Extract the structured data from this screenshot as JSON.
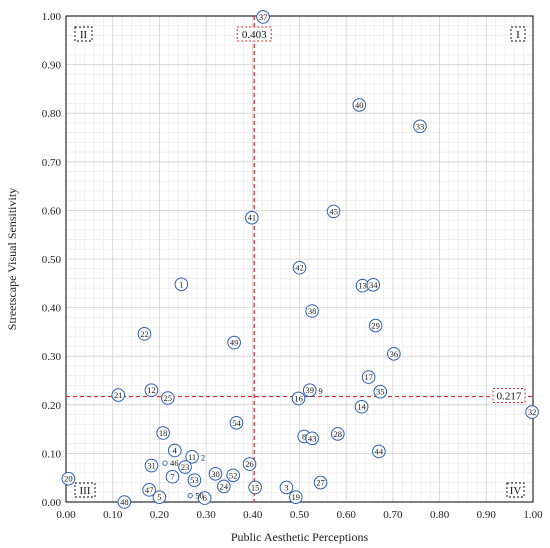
{
  "chart_data": {
    "type": "scatter",
    "xlabel": "Public Aesthetic Perceptions",
    "ylabel": "Streetscape Visual Sensitivity",
    "xlim": [
      0,
      1
    ],
    "ylim": [
      0,
      1
    ],
    "x_ticks": [
      "0.00",
      "0.10",
      "0.20",
      "0.30",
      "0.40",
      "0.50",
      "0.60",
      "0.70",
      "0.80",
      "0.90",
      "1.00"
    ],
    "y_ticks": [
      "0.00",
      "0.10",
      "0.20",
      "0.30",
      "0.40",
      "0.50",
      "0.60",
      "0.70",
      "0.80",
      "0.90",
      "1.00"
    ],
    "grid": true,
    "threshold_x": {
      "value": 0.403,
      "label": "0.403"
    },
    "threshold_y": {
      "value": 0.217,
      "label": "0.217"
    },
    "quadrants": [
      {
        "label": "I",
        "position": "top-right"
      },
      {
        "label": "II",
        "position": "top-left"
      },
      {
        "label": "III",
        "position": "bottom-left"
      },
      {
        "label": "IV",
        "position": "bottom-right"
      }
    ],
    "points": [
      {
        "id": "1",
        "x": 0.247,
        "y": 0.448
      },
      {
        "id": "2",
        "x": 0.278,
        "y": 0.092,
        "outside": true
      },
      {
        "id": "3",
        "x": 0.472,
        "y": 0.03
      },
      {
        "id": "4",
        "x": 0.233,
        "y": 0.106
      },
      {
        "id": "5",
        "x": 0.2,
        "y": 0.01
      },
      {
        "id": "6",
        "x": 0.297,
        "y": 0.008
      },
      {
        "id": "7",
        "x": 0.228,
        "y": 0.052
      },
      {
        "id": "8",
        "x": 0.51,
        "y": 0.135
      },
      {
        "id": "9",
        "x": 0.53,
        "y": 0.228,
        "outside": true
      },
      {
        "id": "11",
        "x": 0.27,
        "y": 0.093
      },
      {
        "id": "12",
        "x": 0.183,
        "y": 0.23
      },
      {
        "id": "13",
        "x": 0.635,
        "y": 0.445
      },
      {
        "id": "14",
        "x": 0.633,
        "y": 0.196
      },
      {
        "id": "15",
        "x": 0.405,
        "y": 0.03
      },
      {
        "id": "16",
        "x": 0.498,
        "y": 0.213
      },
      {
        "id": "17",
        "x": 0.648,
        "y": 0.257
      },
      {
        "id": "18",
        "x": 0.208,
        "y": 0.142
      },
      {
        "id": "19",
        "x": 0.492,
        "y": 0.01
      },
      {
        "id": "20",
        "x": 0.005,
        "y": 0.048
      },
      {
        "id": "21",
        "x": 0.112,
        "y": 0.22
      },
      {
        "id": "22",
        "x": 0.168,
        "y": 0.346
      },
      {
        "id": "23",
        "x": 0.255,
        "y": 0.072
      },
      {
        "id": "24",
        "x": 0.338,
        "y": 0.032
      },
      {
        "id": "25",
        "x": 0.218,
        "y": 0.214
      },
      {
        "id": "26",
        "x": 0.393,
        "y": 0.078
      },
      {
        "id": "27",
        "x": 0.545,
        "y": 0.04
      },
      {
        "id": "28",
        "x": 0.582,
        "y": 0.14
      },
      {
        "id": "29",
        "x": 0.663,
        "y": 0.363
      },
      {
        "id": "30",
        "x": 0.32,
        "y": 0.058
      },
      {
        "id": "31",
        "x": 0.183,
        "y": 0.075
      },
      {
        "id": "32",
        "x": 0.998,
        "y": 0.185
      },
      {
        "id": "33",
        "x": 0.758,
        "y": 0.773
      },
      {
        "id": "34",
        "x": 0.658,
        "y": 0.447
      },
      {
        "id": "35",
        "x": 0.673,
        "y": 0.227
      },
      {
        "id": "36",
        "x": 0.702,
        "y": 0.305
      },
      {
        "id": "37",
        "x": 0.422,
        "y": 0.998
      },
      {
        "id": "38",
        "x": 0.527,
        "y": 0.393
      },
      {
        "id": "39",
        "x": 0.522,
        "y": 0.23
      },
      {
        "id": "40",
        "x": 0.628,
        "y": 0.817
      },
      {
        "id": "41",
        "x": 0.398,
        "y": 0.585
      },
      {
        "id": "42",
        "x": 0.5,
        "y": 0.482
      },
      {
        "id": "43",
        "x": 0.527,
        "y": 0.131
      },
      {
        "id": "44",
        "x": 0.67,
        "y": 0.104
      },
      {
        "id": "45",
        "x": 0.573,
        "y": 0.598
      },
      {
        "id": "46",
        "x": 0.212,
        "y": 0.08,
        "outside": true
      },
      {
        "id": "47",
        "x": 0.178,
        "y": 0.025
      },
      {
        "id": "48",
        "x": 0.125,
        "y": 0.0
      },
      {
        "id": "49",
        "x": 0.36,
        "y": 0.328
      },
      {
        "id": "50",
        "x": 0.266,
        "y": 0.013,
        "outside": true
      },
      {
        "id": "52",
        "x": 0.358,
        "y": 0.055
      },
      {
        "id": "53",
        "x": 0.275,
        "y": 0.045
      },
      {
        "id": "54",
        "x": 0.365,
        "y": 0.163
      }
    ]
  }
}
